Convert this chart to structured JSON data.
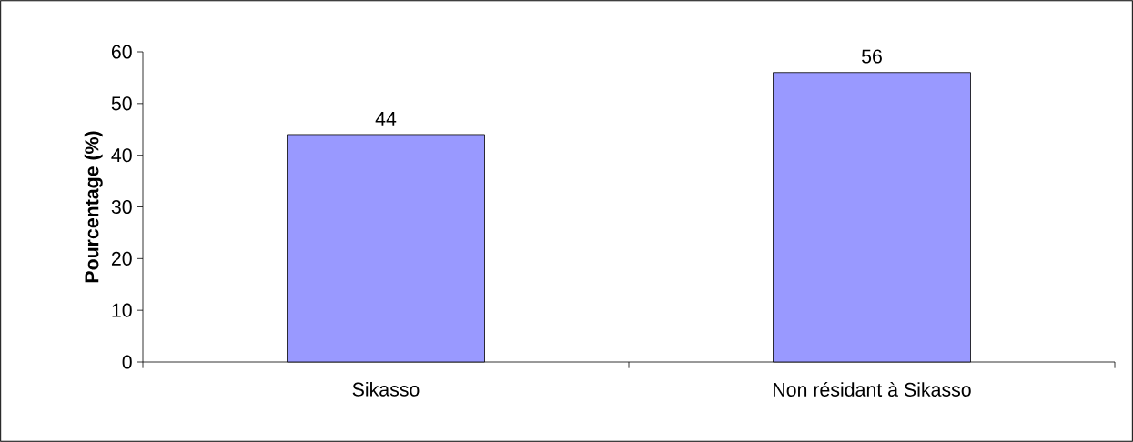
{
  "chart_data": {
    "type": "bar",
    "ylabel": "Pourcentage (%)",
    "categories": [
      "Sikasso",
      "Non résidant à Sikasso"
    ],
    "values": [
      44,
      56
    ],
    "color": "#9999ff",
    "ylim": [
      0,
      60
    ],
    "yticks": [
      0,
      10,
      20,
      30,
      40,
      50,
      60
    ],
    "data_labels": true
  }
}
